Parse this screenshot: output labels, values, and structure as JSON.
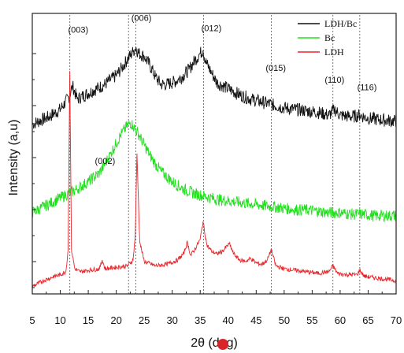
{
  "chart_data": {
    "type": "line",
    "title": "",
    "xlabel": "2θ (deg)",
    "ylabel": "Intensity (a,u)",
    "xlim": [
      5,
      70
    ],
    "xticks": [
      5,
      10,
      15,
      20,
      25,
      30,
      35,
      40,
      45,
      50,
      55,
      60,
      65,
      70
    ],
    "y_tick_labels_shown": false,
    "grid": false,
    "legend_position": "top-right",
    "legend": [
      "LDH/Bc",
      "Bc",
      "LDH"
    ],
    "series": [
      {
        "name": "LDH/Bc",
        "color": "#111111",
        "x": [
          5,
          8,
          10,
          11.5,
          12.2,
          13,
          14,
          16,
          18,
          20,
          21,
          22,
          23,
          23.5,
          24,
          25,
          26,
          27,
          28,
          29,
          30,
          31,
          32,
          33,
          34,
          35,
          35.5,
          36,
          37,
          38,
          40,
          42,
          44,
          46,
          48,
          50,
          52,
          54,
          56,
          58,
          59,
          60,
          62,
          63.5,
          65,
          67,
          70
        ],
        "y": [
          0.3,
          0.35,
          0.4,
          0.48,
          0.56,
          0.47,
          0.49,
          0.53,
          0.57,
          0.63,
          0.68,
          0.74,
          0.79,
          0.82,
          0.78,
          0.76,
          0.7,
          0.62,
          0.57,
          0.57,
          0.58,
          0.6,
          0.63,
          0.67,
          0.73,
          0.78,
          0.8,
          0.72,
          0.65,
          0.58,
          0.54,
          0.5,
          0.47,
          0.45,
          0.43,
          0.41,
          0.4,
          0.39,
          0.38,
          0.36,
          0.4,
          0.36,
          0.35,
          0.36,
          0.34,
          0.33,
          0.32
        ]
      },
      {
        "name": "Bc",
        "color": "#22e01f",
        "x": [
          5,
          7,
          9,
          11,
          13,
          15,
          17,
          18,
          19,
          20,
          21,
          22,
          22.5,
          23,
          24,
          25,
          26,
          27,
          28,
          30,
          32,
          34,
          36,
          38,
          40,
          42,
          44,
          46,
          48,
          50,
          52,
          54,
          56,
          58,
          60,
          62,
          64,
          66,
          68,
          70
        ],
        "y": [
          -0.3,
          -0.26,
          -0.22,
          -0.18,
          -0.14,
          -0.09,
          -0.03,
          0.03,
          0.1,
          0.17,
          0.24,
          0.29,
          0.31,
          0.29,
          0.23,
          0.16,
          0.09,
          0.03,
          -0.02,
          -0.09,
          -0.14,
          -0.17,
          -0.19,
          -0.21,
          -0.22,
          -0.23,
          -0.24,
          -0.25,
          -0.26,
          -0.27,
          -0.28,
          -0.28,
          -0.29,
          -0.3,
          -0.3,
          -0.31,
          -0.31,
          -0.32,
          -0.32,
          -0.32
        ]
      },
      {
        "name": "LDH",
        "color": "#e8272b",
        "x": [
          5,
          7,
          9,
          10,
          11,
          11.4,
          11.7,
          12.0,
          12.6,
          13.5,
          15,
          17,
          17.5,
          18,
          20,
          22,
          23,
          23.4,
          23.7,
          24.2,
          25,
          27,
          29,
          31,
          32,
          32.7,
          33.3,
          34,
          35,
          35.5,
          36.2,
          37,
          38,
          39,
          40.2,
          41,
          42,
          43,
          44,
          45,
          46,
          47,
          47.7,
          48.5,
          50,
          52,
          54,
          56,
          58,
          58.7,
          59.5,
          61,
          63,
          63.5,
          64.3,
          66,
          68,
          70
        ],
        "y": [
          -0.8,
          -0.76,
          -0.73,
          -0.72,
          -0.7,
          -0.55,
          0.66,
          -0.55,
          -0.68,
          -0.7,
          -0.69,
          -0.68,
          -0.62,
          -0.68,
          -0.67,
          -0.66,
          -0.62,
          -0.45,
          0.1,
          -0.5,
          -0.63,
          -0.66,
          -0.65,
          -0.62,
          -0.58,
          -0.5,
          -0.59,
          -0.55,
          -0.48,
          -0.36,
          -0.52,
          -0.56,
          -0.58,
          -0.56,
          -0.51,
          -0.58,
          -0.62,
          -0.63,
          -0.61,
          -0.64,
          -0.65,
          -0.62,
          -0.55,
          -0.66,
          -0.68,
          -0.69,
          -0.7,
          -0.71,
          -0.7,
          -0.66,
          -0.71,
          -0.72,
          -0.72,
          -0.69,
          -0.73,
          -0.74,
          -0.75,
          -0.76
        ]
      }
    ],
    "reference_lines_x": [
      11.7,
      22.2,
      23.5,
      35.6,
      47.7,
      58.7,
      63.5
    ],
    "annotations": [
      {
        "text": "(003)",
        "x": 13.2,
        "y": 0.92
      },
      {
        "text": "(006)",
        "x": 24.5,
        "y": 1.0
      },
      {
        "text": "(012)",
        "x": 37.0,
        "y": 0.93
      },
      {
        "text": "(015)",
        "x": 48.5,
        "y": 0.66
      },
      {
        "text": "(110)",
        "x": 59.0,
        "y": 0.58
      },
      {
        "text": "(116)",
        "x": 64.8,
        "y": 0.53
      },
      {
        "text": "(002)",
        "x": 18.0,
        "y": 0.03
      }
    ]
  }
}
